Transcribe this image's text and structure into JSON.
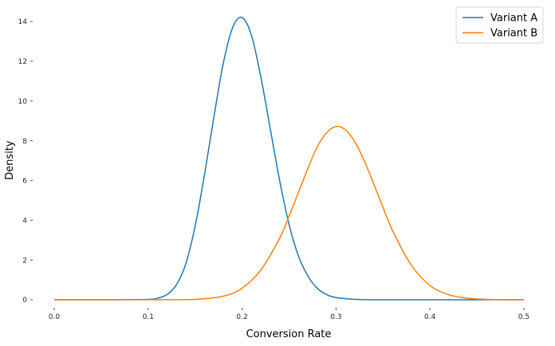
{
  "chart_data": {
    "type": "line",
    "xlabel": "Conversion Rate",
    "ylabel": "Density",
    "xlim": [
      0.0,
      0.5
    ],
    "ylim": [
      0,
      14.2
    ],
    "xticks": [
      0.0,
      0.1,
      0.2,
      0.3,
      0.4,
      0.5
    ],
    "yticks": [
      0,
      2,
      4,
      6,
      8,
      10,
      12,
      14
    ],
    "xtick_labels": [
      "0.0",
      "0.1",
      "0.2",
      "0.3",
      "0.4",
      "0.5"
    ],
    "ytick_labels": [
      "0",
      "2",
      "4",
      "6",
      "8",
      "10",
      "12",
      "14"
    ],
    "grid": false,
    "legend_position": "top-right",
    "series": [
      {
        "name": "Variant A",
        "color": "#1f77b4",
        "x": [
          0.0,
          0.05,
          0.1,
          0.11,
          0.12,
          0.13,
          0.14,
          0.15,
          0.16,
          0.17,
          0.18,
          0.19,
          0.2,
          0.21,
          0.22,
          0.23,
          0.24,
          0.25,
          0.26,
          0.27,
          0.28,
          0.29,
          0.3,
          0.32,
          0.34,
          0.36,
          0.4,
          0.45,
          0.5
        ],
        "y": [
          0.0,
          0.0,
          0.02,
          0.08,
          0.26,
          0.75,
          1.8,
          3.7,
          6.3,
          9.2,
          11.9,
          13.7,
          14.2,
          13.3,
          11.2,
          8.6,
          6.0,
          3.8,
          2.2,
          1.2,
          0.58,
          0.26,
          0.11,
          0.02,
          0.0,
          0.0,
          0.0,
          0.0,
          0.0
        ]
      },
      {
        "name": "Variant B",
        "color": "#ff7f0e",
        "x": [
          0.0,
          0.1,
          0.15,
          0.18,
          0.2,
          0.22,
          0.24,
          0.25,
          0.26,
          0.27,
          0.28,
          0.29,
          0.3,
          0.31,
          0.32,
          0.33,
          0.34,
          0.35,
          0.36,
          0.38,
          0.4,
          0.42,
          0.44,
          0.46,
          0.48,
          0.5
        ],
        "y": [
          0.0,
          0.0,
          0.02,
          0.18,
          0.58,
          1.5,
          3.1,
          4.2,
          5.4,
          6.6,
          7.7,
          8.4,
          8.72,
          8.55,
          7.95,
          7.0,
          5.85,
          4.65,
          3.5,
          1.75,
          0.72,
          0.25,
          0.08,
          0.02,
          0.0,
          0.0
        ]
      }
    ]
  }
}
